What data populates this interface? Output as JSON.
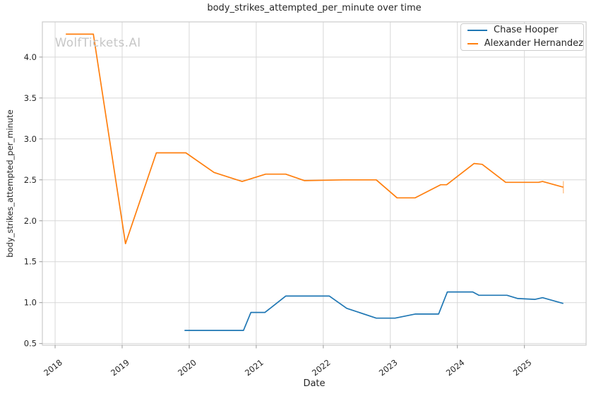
{
  "chart_data": {
    "type": "line",
    "title": "body_strikes_attempted_per_minute over time",
    "xlabel": "Date",
    "ylabel": "body_strikes_attempted_per_minute",
    "watermark": "WolfTickets.AI",
    "grid": true,
    "legend_position": "upper right",
    "xlim": [
      2017.81,
      2025.92
    ],
    "ylim": [
      0.48,
      4.43
    ],
    "xticks": [
      2018,
      2019,
      2020,
      2021,
      2022,
      2023,
      2024,
      2025
    ],
    "yticks": [
      0.5,
      1.0,
      1.5,
      2.0,
      2.5,
      3.0,
      3.5,
      4.0
    ],
    "colors": {
      "grid": "#d8d8d8",
      "plot_border": "#cccccc",
      "tick": "#999999",
      "text": "#262626"
    },
    "series": [
      {
        "name": "Chase Hooper",
        "color": "#1f77b4",
        "points": [
          [
            2019.93,
            0.66
          ],
          [
            2020.81,
            0.66
          ],
          [
            2020.92,
            0.88
          ],
          [
            2021.13,
            0.88
          ],
          [
            2021.44,
            1.08
          ],
          [
            2022.09,
            1.08
          ],
          [
            2022.35,
            0.93
          ],
          [
            2022.79,
            0.81
          ],
          [
            2023.07,
            0.81
          ],
          [
            2023.37,
            0.86
          ],
          [
            2023.72,
            0.86
          ],
          [
            2023.85,
            1.13
          ],
          [
            2024.23,
            1.13
          ],
          [
            2024.32,
            1.09
          ],
          [
            2024.74,
            1.09
          ],
          [
            2024.9,
            1.05
          ],
          [
            2025.16,
            1.04
          ],
          [
            2025.27,
            1.06
          ],
          [
            2025.58,
            0.99
          ]
        ]
      },
      {
        "name": "Alexander Hernandez",
        "color": "#ff7f0e",
        "end_tick_half_height": 0.075,
        "points": [
          [
            2018.16,
            4.28
          ],
          [
            2018.57,
            4.28
          ],
          [
            2019.05,
            1.72
          ],
          [
            2019.51,
            2.83
          ],
          [
            2019.95,
            2.83
          ],
          [
            2020.37,
            2.59
          ],
          [
            2020.79,
            2.48
          ],
          [
            2021.14,
            2.57
          ],
          [
            2021.44,
            2.57
          ],
          [
            2021.72,
            2.49
          ],
          [
            2022.3,
            2.5
          ],
          [
            2022.79,
            2.5
          ],
          [
            2023.1,
            2.28
          ],
          [
            2023.37,
            2.28
          ],
          [
            2023.75,
            2.44
          ],
          [
            2023.84,
            2.44
          ],
          [
            2024.25,
            2.7
          ],
          [
            2024.37,
            2.69
          ],
          [
            2024.72,
            2.47
          ],
          [
            2025.21,
            2.47
          ],
          [
            2025.27,
            2.48
          ],
          [
            2025.58,
            2.41
          ]
        ]
      }
    ]
  }
}
